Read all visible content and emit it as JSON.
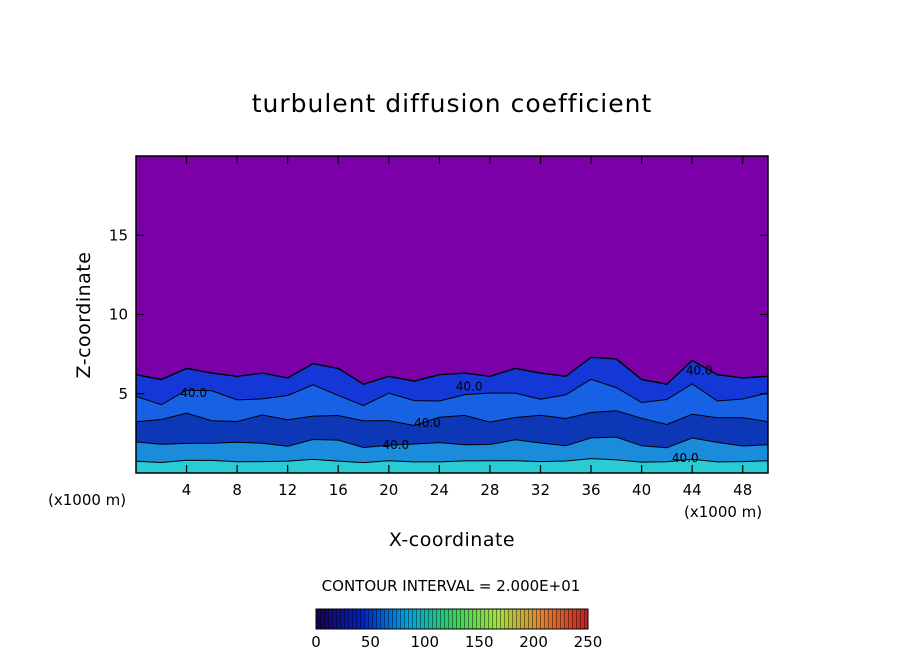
{
  "chart_data": {
    "type": "heatmap",
    "title": "turbulent diffusion coefficient",
    "xlabel": "X-coordinate",
    "ylabel": "Z-coordinate",
    "x_unit_left": "(x1000 m)",
    "x_unit_right": "(x1000 m)",
    "xlim": [
      0,
      50
    ],
    "ylim": [
      0,
      20
    ],
    "x_ticks": [
      4,
      8,
      12,
      16,
      20,
      24,
      28,
      32,
      36,
      40,
      44,
      48
    ],
    "y_ticks": [
      5,
      10,
      15
    ],
    "contour_interval_text": "CONTOUR INTERVAL = 2.000E+01",
    "contour_label": "40.0",
    "contour_label_positions": [
      {
        "x": 3.5,
        "z": 4.8
      },
      {
        "x": 19.5,
        "z": 1.5
      },
      {
        "x": 22.0,
        "z": 2.9
      },
      {
        "x": 25.3,
        "z": 5.2
      },
      {
        "x": 43.5,
        "z": 6.2
      },
      {
        "x": 42.4,
        "z": 0.7
      }
    ],
    "colorbar": {
      "min": 0,
      "max": 250,
      "ticks": [
        0,
        50,
        100,
        150,
        200,
        250
      ],
      "colors": [
        "#1a0050",
        "#0020c0",
        "#00a0e0",
        "#30d060",
        "#a0e040",
        "#e08030",
        "#c02020"
      ]
    },
    "background_color": "#7b00a8",
    "turbulent_layer_top_z": [
      [
        0,
        6.2
      ],
      [
        2,
        5.9
      ],
      [
        4,
        6.6
      ],
      [
        6,
        6.3
      ],
      [
        8,
        6.1
      ],
      [
        10,
        6.3
      ],
      [
        12,
        6.0
      ],
      [
        14,
        6.9
      ],
      [
        16,
        6.6
      ],
      [
        18,
        5.6
      ],
      [
        20,
        6.1
      ],
      [
        22,
        5.8
      ],
      [
        24,
        6.2
      ],
      [
        26,
        6.3
      ],
      [
        28,
        6.1
      ],
      [
        30,
        6.6
      ],
      [
        32,
        6.3
      ],
      [
        34,
        6.1
      ],
      [
        36,
        7.3
      ],
      [
        38,
        7.2
      ],
      [
        40,
        5.9
      ],
      [
        42,
        5.6
      ],
      [
        44,
        7.1
      ],
      [
        46,
        6.2
      ],
      [
        48,
        6.0
      ],
      [
        50,
        6.1
      ]
    ]
  }
}
